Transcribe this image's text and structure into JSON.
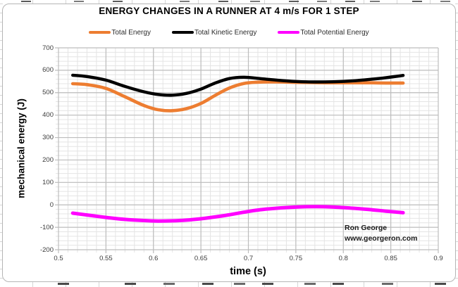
{
  "chart": {
    "title": "ENERGY CHANGES IN A RUNNER AT 4 m/s FOR 1 STEP",
    "watermark": {
      "line1": "Ron George",
      "line2": "www.georgeron.com"
    },
    "x_axis": {
      "title": "time (s)",
      "tick_labels": [
        "0.5",
        "0.55",
        "0.6",
        "0.65",
        "0.7",
        "0.75",
        "0.8",
        "0.85",
        "0.9"
      ]
    },
    "y_axis": {
      "title": "mechanical energy (J)",
      "tick_labels": [
        "700",
        "600",
        "500",
        "400",
        "300",
        "200",
        "100",
        "0",
        "-100",
        "-200"
      ]
    }
  },
  "chart_data": {
    "type": "line",
    "title": "ENERGY CHANGES IN A RUNNER AT 4 m/s FOR 1 STEP",
    "xlabel": "time (s)",
    "ylabel": "mechanical energy (J)",
    "xlim": [
      0.5,
      0.9
    ],
    "ylim": [
      -200,
      700
    ],
    "x_major_step": 0.05,
    "x_minor_step": 0.01,
    "y_major_step": 100,
    "y_minor_step": 20,
    "grid": "major+minor",
    "grid_major_color": "#bdbdbd",
    "grid_minor_color": "#e4e4e4",
    "legend_position": "top",
    "x": [
      0.515,
      0.53,
      0.55,
      0.57,
      0.59,
      0.605,
      0.62,
      0.635,
      0.65,
      0.665,
      0.68,
      0.695,
      0.71,
      0.73,
      0.75,
      0.77,
      0.79,
      0.81,
      0.83,
      0.845,
      0.863
    ],
    "series": [
      {
        "name": "Total Energy",
        "color": "#ED7D31",
        "values": [
          540,
          536,
          519,
          482,
          443,
          424,
          420,
          429,
          452,
          488,
          521,
          541,
          547,
          548,
          546,
          545,
          544,
          544,
          544,
          543,
          543
        ]
      },
      {
        "name": "Total Kinetic Energy",
        "color": "#000000",
        "values": [
          578,
          572,
          556,
          528,
          504,
          492,
          489,
          497,
          516,
          543,
          563,
          569,
          564,
          556,
          550,
          548,
          549,
          553,
          560,
          567,
          577
        ]
      },
      {
        "name": "Total Potential Energy",
        "color": "#FF00FF",
        "values": [
          -37,
          -45,
          -56,
          -65,
          -70,
          -72,
          -71,
          -68,
          -62,
          -54,
          -44,
          -33,
          -23,
          -15,
          -10,
          -8,
          -10,
          -15,
          -22,
          -28,
          -35
        ]
      }
    ]
  }
}
